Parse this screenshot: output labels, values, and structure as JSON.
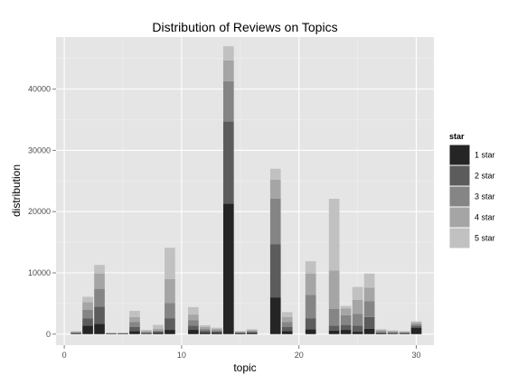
{
  "chart_data": {
    "type": "bar",
    "stacked": true,
    "title": "Distribution of Reviews on Topics",
    "xlabel": "topic",
    "ylabel": "distribution",
    "xlim": [
      -0.7,
      31.5
    ],
    "ylim": [
      -1800,
      48500
    ],
    "xticks": [
      0,
      10,
      20,
      30
    ],
    "yticks": [
      0,
      10000,
      20000,
      30000,
      40000
    ],
    "grid": true,
    "legend": {
      "title": "star",
      "position": "right"
    },
    "x": [
      1,
      2,
      3,
      4,
      5,
      6,
      7,
      8,
      9,
      10,
      11,
      12,
      13,
      14,
      15,
      16,
      17,
      18,
      19,
      20,
      21,
      22,
      23,
      24,
      25,
      26,
      27,
      28,
      29,
      30
    ],
    "series": [
      {
        "name": "1 star",
        "color": "#252525",
        "values": [
          100,
          1400,
          1700,
          80,
          80,
          500,
          100,
          200,
          700,
          0,
          700,
          250,
          200,
          21300,
          120,
          180,
          0,
          6000,
          500,
          0,
          800,
          0,
          600,
          700,
          400,
          900,
          150,
          100,
          100,
          1000
        ]
      },
      {
        "name": "2 star",
        "color": "#5c5c5c",
        "values": [
          100,
          1200,
          2800,
          50,
          50,
          700,
          100,
          200,
          1900,
          0,
          700,
          300,
          250,
          13400,
          100,
          150,
          0,
          8700,
          700,
          0,
          1800,
          0,
          800,
          800,
          1000,
          1900,
          150,
          100,
          100,
          300
        ]
      },
      {
        "name": "3 star",
        "color": "#858585",
        "values": [
          100,
          1400,
          2900,
          50,
          50,
          800,
          150,
          200,
          2500,
          0,
          900,
          300,
          200,
          6600,
          100,
          150,
          0,
          7400,
          800,
          0,
          3800,
          0,
          2700,
          1600,
          1900,
          2600,
          200,
          150,
          100,
          300
        ]
      },
      {
        "name": "4 star",
        "color": "#a5a5a5",
        "values": [
          100,
          1200,
          2500,
          30,
          30,
          800,
          150,
          300,
          3900,
          0,
          900,
          300,
          200,
          3400,
          100,
          150,
          0,
          3100,
          800,
          0,
          3500,
          0,
          6300,
          1100,
          2300,
          2200,
          150,
          150,
          100,
          300
        ]
      },
      {
        "name": "5 star",
        "color": "#c1c1c1",
        "values": [
          100,
          900,
          1400,
          20,
          20,
          1000,
          200,
          600,
          5100,
          0,
          1200,
          300,
          200,
          2300,
          80,
          170,
          0,
          1800,
          800,
          0,
          2000,
          0,
          11700,
          400,
          2100,
          2300,
          150,
          100,
          100,
          200
        ]
      }
    ]
  }
}
